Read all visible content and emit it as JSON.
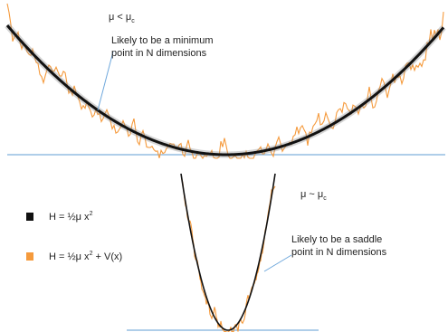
{
  "top_panel": {
    "condition": {
      "mu": "μ < μ",
      "sub": "c"
    },
    "annotation_line1": "Likely to be a minimum",
    "annotation_line2": "point in N dimensions"
  },
  "bottom_panel": {
    "condition": {
      "mu": "μ ~ μ",
      "sub": "c"
    },
    "annotation_line1": "Likely to be a saddle",
    "annotation_line2": "point in N dimensions"
  },
  "legend": {
    "items": [
      {
        "label": "H = ½μ x",
        "sup": "2",
        "tail": "",
        "color": "#111111"
      },
      {
        "label": "H = ½μ x",
        "sup": "2",
        "tail": " + V(x)",
        "color": "#f59a3c"
      }
    ]
  },
  "colors": {
    "baseline": "#7fb0dc",
    "parabola": "#111111",
    "noisy": "#f59a3c",
    "pointer": "#6fa8dc"
  }
}
